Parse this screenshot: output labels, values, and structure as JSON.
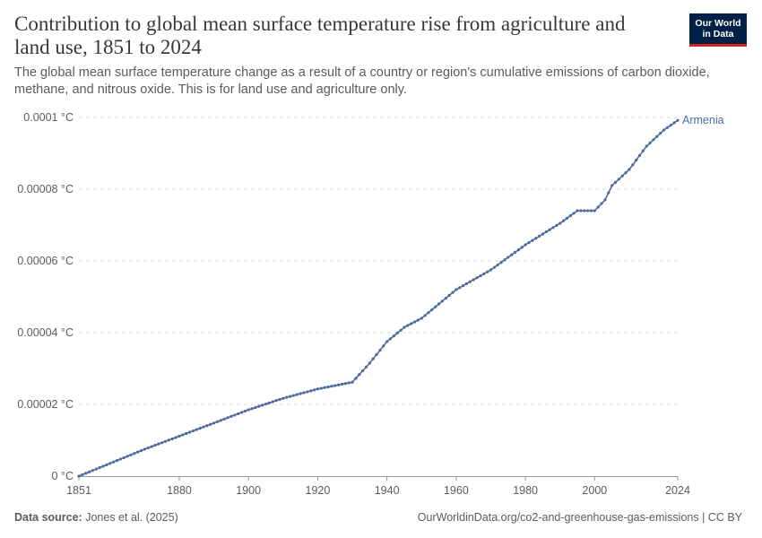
{
  "header": {
    "title": "Contribution to global mean surface temperature rise from agriculture and land use, 1851 to 2024",
    "subtitle": "The global mean surface temperature change as a result of a country or region's cumulative emissions of carbon dioxide, methane, and nitrous oxide. This is for land use and agriculture only."
  },
  "logo": {
    "line1": "Our World",
    "line2": "in Data"
  },
  "footer": {
    "source_label": "Data source:",
    "source_text": "Jones et al. (2025)",
    "right_text": "OurWorldinData.org/co2-and-greenhouse-gas-emissions | CC BY"
  },
  "colors": {
    "series": "#4c6a9c",
    "grid": "#dddddd",
    "axis": "#999999",
    "text": "#5b5b5b"
  },
  "chart_data": {
    "type": "line",
    "title": "Contribution to global mean surface temperature rise from agriculture and land use, 1851 to 2024",
    "xlabel": "",
    "ylabel": "",
    "xlim": [
      1851,
      2024
    ],
    "ylim": [
      0,
      0.0001
    ],
    "x_ticks": [
      1851,
      1880,
      1900,
      1920,
      1940,
      1960,
      1980,
      2000,
      2024
    ],
    "y_ticks": [
      {
        "value": 0,
        "label": "0 °C"
      },
      {
        "value": 2e-05,
        "label": "0.00002 °C"
      },
      {
        "value": 4e-05,
        "label": "0.00004 °C"
      },
      {
        "value": 6e-05,
        "label": "0.00006 °C"
      },
      {
        "value": 8e-05,
        "label": "0.00008 °C"
      },
      {
        "value": 0.0001,
        "label": "0.0001 °C"
      }
    ],
    "grid": true,
    "series": [
      {
        "name": "Armenia",
        "anchors": [
          [
            1851,
            0.0
          ],
          [
            1870,
            7.5e-06
          ],
          [
            1890,
            1.48e-05
          ],
          [
            1900,
            1.85e-05
          ],
          [
            1910,
            2.17e-05
          ],
          [
            1920,
            2.43e-05
          ],
          [
            1930,
            2.62e-05
          ],
          [
            1935,
            3.15e-05
          ],
          [
            1940,
            3.75e-05
          ],
          [
            1945,
            4.15e-05
          ],
          [
            1950,
            4.4e-05
          ],
          [
            1955,
            4.8e-05
          ],
          [
            1960,
            5.2e-05
          ],
          [
            1970,
            5.75e-05
          ],
          [
            1980,
            6.45e-05
          ],
          [
            1990,
            7.05e-05
          ],
          [
            1995,
            7.4e-05
          ],
          [
            2000,
            7.4e-05
          ],
          [
            2003,
            7.7e-05
          ],
          [
            2005,
            8.1e-05
          ],
          [
            2010,
            8.55e-05
          ],
          [
            2015,
            9.2e-05
          ],
          [
            2020,
            9.65e-05
          ],
          [
            2024,
            9.92e-05
          ]
        ]
      }
    ]
  }
}
